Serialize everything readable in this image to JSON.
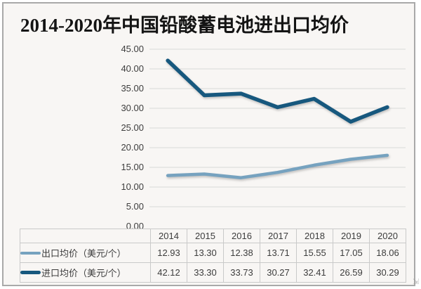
{
  "title": "2014-2020年中国铅酸蓄电池进出口均价",
  "colors": {
    "export_line": "#76a2bf",
    "import_line": "#17587e",
    "gridline": "#d9d9d9",
    "table_border": "#c9c9c9",
    "background": "#f8f6f4"
  },
  "chart_data": {
    "type": "line",
    "title": "2014-2020年中国铅酸蓄电池进出口均价",
    "categories": [
      "2014",
      "2015",
      "2016",
      "2017",
      "2018",
      "2019",
      "2020"
    ],
    "series": [
      {
        "name": "出口均价（美元/个）",
        "color": "#76a2bf",
        "values": [
          12.93,
          13.3,
          12.38,
          13.71,
          15.55,
          17.05,
          18.06
        ]
      },
      {
        "name": "进口均价（美元/个）",
        "color": "#17587e",
        "values": [
          42.12,
          33.3,
          33.73,
          30.27,
          32.41,
          26.59,
          30.29
        ]
      }
    ],
    "xlabel": "",
    "ylabel": "",
    "ylim": [
      0,
      45
    ],
    "ytick_step": 5,
    "ytick_labels": [
      "45.00",
      "40.00",
      "35.00",
      "30.00",
      "25.00",
      "20.00",
      "15.00",
      "10.00",
      "5.00",
      "0.00"
    ],
    "grid": true,
    "legend_position": "table-left-bottom"
  },
  "table": {
    "header_years": [
      "2014",
      "2015",
      "2016",
      "2017",
      "2018",
      "2019",
      "2020"
    ],
    "rows": [
      {
        "label": "出口均价（美元/个）",
        "values": [
          "12.93",
          "13.30",
          "12.38",
          "13.71",
          "15.55",
          "17.05",
          "18.06"
        ]
      },
      {
        "label": "进口均价（美元/个）",
        "values": [
          "42.12",
          "33.30",
          "33.73",
          "30.27",
          "32.41",
          "26.59",
          "30.29"
        ]
      }
    ]
  },
  "artifacts": {
    "corner_mark": "⇲"
  }
}
